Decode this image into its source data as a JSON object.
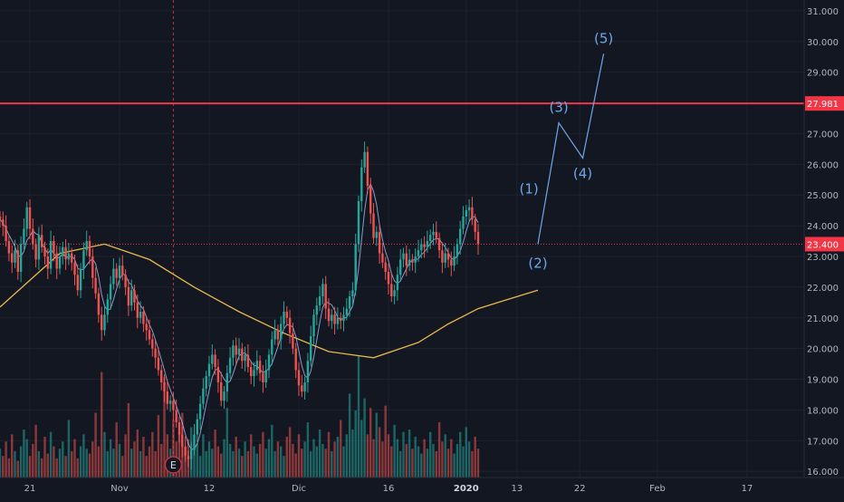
{
  "chart_data": {
    "type": "candlestick",
    "title": "",
    "xlabel": "",
    "ylabel": "",
    "ylim": [
      15.8,
      31.35
    ],
    "y_ticks": [
      "16.000",
      "17.000",
      "18.000",
      "19.000",
      "20.000",
      "21.000",
      "22.000",
      "23.000",
      "24.000",
      "25.000",
      "26.000",
      "27.000",
      "28.000",
      "29.000",
      "30.000",
      "31.000"
    ],
    "x_ticks": [
      {
        "label": "21",
        "index": 10
      },
      {
        "label": "Nov",
        "index": 40
      },
      {
        "label": "12",
        "index": 70
      },
      {
        "label": "Dic",
        "index": 100
      },
      {
        "label": "16",
        "index": 130
      },
      {
        "label": "2020",
        "index": 156
      },
      {
        "label": "13",
        "index": 173
      },
      {
        "label": "22",
        "index": 194
      },
      {
        "label": "Feb",
        "index": 220
      },
      {
        "label": "17",
        "index": 250
      }
    ],
    "price_close": [
      24.2,
      24.0,
      23.5,
      23.1,
      22.8,
      23.2,
      22.5,
      23.4,
      23.9,
      24.6,
      23.9,
      23.4,
      22.9,
      23.7,
      23.3,
      23.0,
      22.6,
      23.5,
      23.1,
      22.6,
      23.0,
      23.3,
      22.9,
      23.1,
      22.8,
      22.4,
      21.9,
      22.6,
      23.2,
      23.5,
      23.0,
      22.3,
      21.8,
      21.1,
      20.6,
      21.1,
      21.6,
      22.1,
      22.6,
      22.3,
      22.7,
      22.4,
      22.0,
      21.4,
      21.9,
      21.5,
      21.0,
      21.2,
      20.8,
      20.6,
      20.3,
      20.0,
      19.7,
      19.3,
      18.9,
      18.6,
      18.2,
      18.3,
      18.0,
      17.6,
      17.2,
      16.8,
      16.5,
      16.4,
      16.7,
      17.2,
      17.7,
      18.2,
      18.7,
      19.1,
      19.5,
      19.8,
      19.4,
      18.9,
      18.3,
      18.6,
      19.2,
      19.7,
      20.1,
      19.8,
      20.0,
      19.6,
      19.8,
      19.4,
      19.1,
      19.3,
      19.6,
      19.2,
      18.9,
      19.3,
      19.8,
      20.3,
      20.6,
      20.3,
      20.8,
      21.2,
      21.0,
      20.5,
      20.0,
      19.3,
      18.8,
      18.6,
      18.9,
      19.6,
      20.4,
      21.1,
      21.4,
      21.7,
      22.1,
      21.3,
      20.9,
      21.1,
      20.8,
      21.0,
      20.9,
      21.1,
      21.3,
      21.7,
      21.9,
      23.4,
      24.8,
      25.9,
      26.4,
      25.3,
      24.4,
      23.6,
      23.8,
      23.1,
      22.8,
      22.5,
      22.1,
      21.7,
      21.9,
      22.4,
      22.9,
      23.1,
      22.7,
      22.9,
      22.8,
      23.0,
      23.2,
      23.4,
      23.3,
      23.5,
      23.7,
      23.8,
      23.6,
      23.2,
      22.8,
      23.1,
      22.9,
      22.7,
      23.0,
      23.4,
      23.9,
      24.3,
      24.5,
      24.6,
      24.2,
      23.8,
      23.4
    ],
    "volume": [
      1.2,
      0.9,
      1.5,
      0.8,
      1.8,
      1.1,
      0.7,
      1.3,
      2.0,
      1.6,
      0.9,
      1.4,
      2.2,
      1.1,
      0.8,
      1.7,
      1.0,
      1.9,
      1.3,
      0.8,
      1.2,
      1.5,
      0.9,
      2.4,
      1.1,
      1.6,
      0.8,
      1.3,
      1.8,
      1.2,
      1.0,
      1.5,
      2.7,
      1.3,
      4.4,
      1.9,
      1.1,
      1.6,
      1.2,
      2.3,
      1.4,
      0.9,
      1.8,
      3.1,
      1.2,
      1.5,
      2.0,
      1.1,
      1.7,
      0.9,
      1.3,
      1.9,
      1.1,
      2.6,
      1.4,
      4.2,
      1.8,
      1.2,
      2.4,
      1.5,
      1.9,
      2.7,
      1.3,
      1.6,
      2.1,
      1.2,
      1.4,
      0.9,
      1.8,
      1.1,
      1.5,
      1.2,
      2.0,
      1.3,
      1.0,
      1.6,
      2.9,
      1.4,
      1.1,
      1.7,
      1.2,
      0.9,
      1.5,
      1.1,
      1.8,
      1.3,
      1.0,
      1.4,
      1.9,
      1.2,
      1.6,
      2.2,
      1.1,
      1.5,
      1.3,
      0.9,
      1.7,
      2.1,
      1.4,
      1.0,
      1.8,
      1.2,
      1.5,
      2.3,
      1.1,
      1.6,
      1.3,
      2.0,
      1.4,
      1.2,
      1.9,
      1.1,
      1.5,
      1.7,
      2.4,
      1.3,
      1.8,
      3.5,
      2.0,
      2.8,
      5.1,
      2.4,
      3.3,
      1.8,
      2.9,
      1.6,
      2.7,
      2.1,
      1.5,
      3.0,
      1.8,
      1.3,
      2.2,
      1.6,
      1.1,
      1.9,
      1.4,
      2.0,
      1.2,
      1.7,
      1.3,
      1.0,
      1.6,
      1.2,
      1.9,
      1.4,
      1.1,
      2.3,
      1.5,
      1.8,
      1.2,
      1.6,
      1.0,
      1.4,
      1.9,
      1.3,
      2.1,
      1.5,
      1.1,
      1.7,
      1.2
    ],
    "moving_average_long": [
      {
        "index": 0,
        "value": 21.35
      },
      {
        "index": 20,
        "value": 23.1
      },
      {
        "index": 35,
        "value": 23.4
      },
      {
        "index": 50,
        "value": 22.9
      },
      {
        "index": 65,
        "value": 22.0
      },
      {
        "index": 80,
        "value": 21.2
      },
      {
        "index": 95,
        "value": 20.5
      },
      {
        "index": 110,
        "value": 19.9
      },
      {
        "index": 125,
        "value": 19.7
      },
      {
        "index": 140,
        "value": 20.2
      },
      {
        "index": 150,
        "value": 20.8
      },
      {
        "index": 160,
        "value": 21.3
      },
      {
        "index": 170,
        "value": 21.6
      },
      {
        "index": 180,
        "value": 21.9
      }
    ],
    "wave_projection": [
      {
        "index": 180,
        "value": 23.4,
        "label": "(2)",
        "label_dy": 26
      },
      {
        "index": 187,
        "value": 27.35,
        "label": "(3)",
        "label_dy": -12
      },
      {
        "index": 195,
        "value": 26.2,
        "label": "(4)",
        "label_dy": 22
      },
      {
        "index": 202,
        "value": 29.6,
        "label": "(5)",
        "label_dy": -12
      }
    ],
    "wave_label_1": {
      "index": 177,
      "value": 24.7,
      "label": "(1)",
      "label_dy": -12
    },
    "horizontal_levels": [
      {
        "value": 27.981,
        "label": "27.981",
        "color": "#f23645",
        "style": "solid"
      },
      {
        "value": 23.4,
        "label": "23.400",
        "color": "#f23645",
        "style": "dotted"
      }
    ],
    "vertical_marker_index": 58,
    "event_badge": {
      "label": "E",
      "index": 58
    },
    "colors": {
      "background": "#131722",
      "up": "#26a69a",
      "down": "#ef5350",
      "ma_long": "#e8b84c",
      "ma_short": "#b0c8ff",
      "wave": "#6ea8e8",
      "axis_text": "#b2b5be",
      "grid": "#1e222d"
    }
  }
}
